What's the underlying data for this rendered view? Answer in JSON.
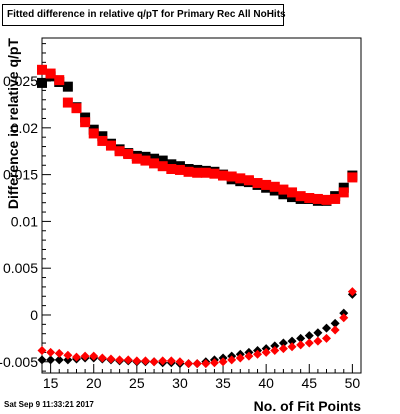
{
  "title": "Fitted difference in relative q/pT for Primary Rec All NoHits",
  "timestamp": "Sat Sep  9 11:33:21 2017",
  "chart_data": {
    "type": "scatter",
    "title": "Fitted difference in relative q/pT for Primary Rec All NoHits",
    "xlabel": "No. of Fit Points",
    "ylabel": "Difference in relative q/pT",
    "xlim": [
      14,
      51
    ],
    "ylim": [
      -0.0062,
      0.0296
    ],
    "xticks": [
      15,
      20,
      25,
      30,
      35,
      40,
      45,
      50
    ],
    "xtick_labels": [
      "15",
      "20",
      "25",
      "30",
      "35",
      "40",
      "45",
      "50"
    ],
    "yticks": [
      -0.005,
      0,
      0.005,
      0.01,
      0.015,
      0.02,
      0.025
    ],
    "ytick_labels": [
      "-0.005",
      "0",
      "0.005",
      "0.01",
      "0.015",
      "0.02",
      "0.025"
    ],
    "grid": false,
    "series": [
      {
        "marker": "square",
        "color": "#000000",
        "x": [
          14,
          15,
          16,
          17,
          18,
          19,
          20,
          21,
          22,
          23,
          24,
          25,
          26,
          27,
          28,
          29,
          30,
          31,
          32,
          33,
          34,
          35,
          36,
          37,
          38,
          39,
          40,
          41,
          42,
          43,
          44,
          45,
          46,
          47,
          48,
          49,
          50
        ],
        "y": [
          0.0248,
          0.0255,
          0.0249,
          0.0244,
          0.0222,
          0.0211,
          0.0198,
          0.0191,
          0.0183,
          0.0177,
          0.0173,
          0.017,
          0.0169,
          0.0167,
          0.0165,
          0.0161,
          0.0159,
          0.0156,
          0.0155,
          0.0154,
          0.0153,
          0.015,
          0.0145,
          0.0143,
          0.0142,
          0.0139,
          0.0136,
          0.0133,
          0.0129,
          0.0126,
          0.0124,
          0.0124,
          0.0122,
          0.0122,
          0.0127,
          0.0136,
          0.0149
        ]
      },
      {
        "marker": "square",
        "color": "#ff0000",
        "x": [
          14,
          15,
          16,
          17,
          18,
          19,
          20,
          21,
          22,
          23,
          24,
          25,
          26,
          27,
          28,
          29,
          30,
          31,
          32,
          33,
          34,
          35,
          36,
          37,
          38,
          39,
          40,
          41,
          42,
          43,
          44,
          45,
          46,
          47,
          48,
          49,
          50
        ],
        "y": [
          0.0262,
          0.0258,
          0.0251,
          0.0227,
          0.0221,
          0.0206,
          0.0194,
          0.0186,
          0.0181,
          0.0175,
          0.0172,
          0.0167,
          0.0165,
          0.0162,
          0.0159,
          0.0156,
          0.0155,
          0.0153,
          0.0152,
          0.0152,
          0.0151,
          0.0149,
          0.0148,
          0.0146,
          0.0144,
          0.0141,
          0.0139,
          0.0137,
          0.0134,
          0.0131,
          0.0127,
          0.0125,
          0.0124,
          0.0123,
          0.0124,
          0.0131,
          0.0147
        ]
      },
      {
        "marker": "diamond",
        "color": "#000000",
        "x": [
          14,
          15,
          16,
          17,
          18,
          19,
          20,
          21,
          22,
          23,
          24,
          25,
          26,
          27,
          28,
          29,
          30,
          31,
          32,
          33,
          34,
          35,
          36,
          37,
          38,
          39,
          40,
          41,
          42,
          43,
          44,
          45,
          46,
          47,
          48,
          49,
          50
        ],
        "y": [
          -0.0048,
          -0.0048,
          -0.0048,
          -0.0048,
          -0.0047,
          -0.0046,
          -0.0046,
          -0.0047,
          -0.0048,
          -0.0049,
          -0.0049,
          -0.005,
          -0.005,
          -0.005,
          -0.0051,
          -0.0051,
          -0.0052,
          -0.0052,
          -0.0052,
          -0.005,
          -0.0048,
          -0.0046,
          -0.0044,
          -0.0042,
          -0.004,
          -0.0038,
          -0.0036,
          -0.0033,
          -0.003,
          -0.0028,
          -0.0025,
          -0.0022,
          -0.0019,
          -0.0014,
          -0.0009,
          0.0002,
          0.0022
        ]
      },
      {
        "marker": "diamond",
        "color": "#ff0000",
        "x": [
          14,
          15,
          16,
          17,
          18,
          19,
          20,
          21,
          22,
          23,
          24,
          25,
          26,
          27,
          28,
          29,
          30,
          31,
          32,
          33,
          34,
          35,
          36,
          37,
          38,
          39,
          40,
          41,
          42,
          43,
          44,
          45,
          46,
          47,
          48,
          49,
          50
        ],
        "y": [
          -0.0038,
          -0.004,
          -0.0041,
          -0.0043,
          -0.0045,
          -0.0044,
          -0.0044,
          -0.0046,
          -0.0047,
          -0.0048,
          -0.0048,
          -0.0049,
          -0.0049,
          -0.005,
          -0.0049,
          -0.0049,
          -0.005,
          -0.0052,
          -0.0052,
          -0.0052,
          -0.0051,
          -0.005,
          -0.0048,
          -0.0046,
          -0.0044,
          -0.0042,
          -0.004,
          -0.0038,
          -0.0036,
          -0.0034,
          -0.0032,
          -0.003,
          -0.0028,
          -0.0025,
          -0.0016,
          -0.0003,
          0.0025
        ]
      }
    ]
  }
}
